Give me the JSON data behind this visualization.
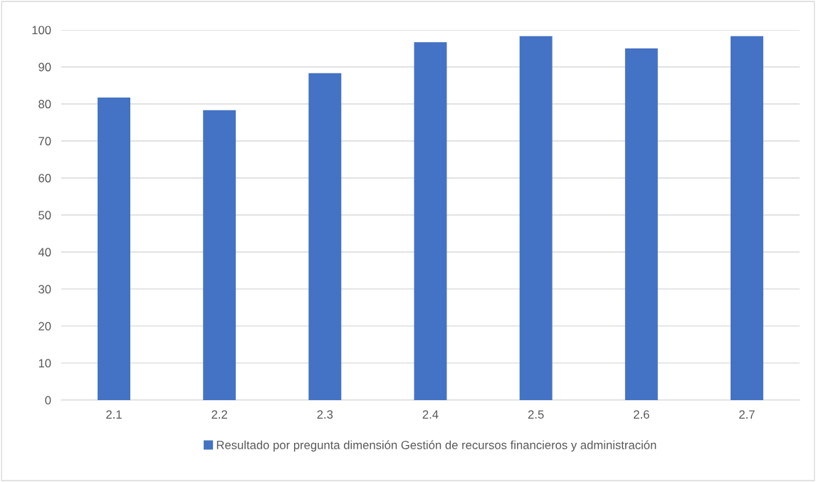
{
  "chart_data": {
    "type": "bar",
    "categories": [
      "2.1",
      "2.2",
      "2.3",
      "2.4",
      "2.5",
      "2.6",
      "2.7"
    ],
    "series": [
      {
        "name": "Resultado por pregunta dimensión Gestión de recursos financieros y administración",
        "color": "#4472c4",
        "values": [
          81.7,
          78.3,
          88.3,
          96.7,
          98.3,
          95,
          98.3
        ]
      }
    ],
    "ylim": [
      0,
      100
    ],
    "yticks": [
      0,
      10,
      20,
      30,
      40,
      50,
      60,
      70,
      80,
      90,
      100
    ],
    "grid": "y",
    "legend": "bottom"
  }
}
